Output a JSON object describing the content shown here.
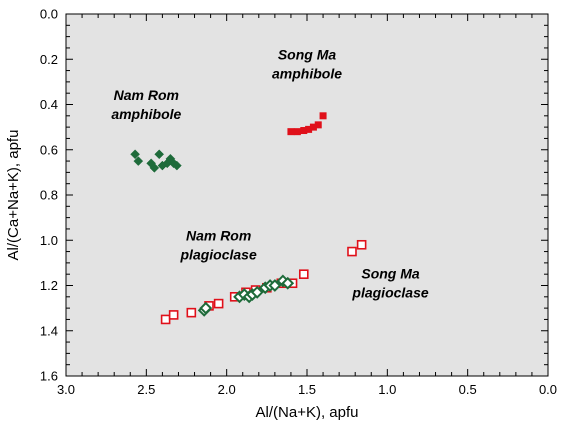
{
  "chart_data": {
    "type": "scatter",
    "title": "",
    "xlabel": "Al/(Na+K), apfu",
    "ylabel": "Al/(Ca+Na+K), apfu",
    "xlim": [
      3.0,
      0.0
    ],
    "ylim": [
      0.0,
      1.6
    ],
    "x_reversed": true,
    "y_reversed": true,
    "x_ticks": [
      "3.0",
      "2.5",
      "2.0",
      "1.5",
      "1.0",
      "0.5",
      "0.0"
    ],
    "y_ticks": [
      "0.0",
      "0.2",
      "0.4",
      "0.6",
      "0.8",
      "1.0",
      "1.2",
      "1.4",
      "1.6"
    ],
    "grid": false,
    "plot_background": "#e3e3e3",
    "series": [
      {
        "marker": "filled-diamond",
        "color": "#1e6b3a",
        "points": [
          {
            "x": 2.57,
            "y": 0.62
          },
          {
            "x": 2.55,
            "y": 0.65
          },
          {
            "x": 2.47,
            "y": 0.66
          },
          {
            "x": 2.45,
            "y": 0.68
          },
          {
            "x": 2.42,
            "y": 0.62
          },
          {
            "x": 2.4,
            "y": 0.67
          },
          {
            "x": 2.37,
            "y": 0.66
          },
          {
            "x": 2.35,
            "y": 0.64
          },
          {
            "x": 2.33,
            "y": 0.66
          },
          {
            "x": 2.31,
            "y": 0.67
          }
        ]
      },
      {
        "marker": "filled-square",
        "color": "#e0101a",
        "points": [
          {
            "x": 1.6,
            "y": 0.52
          },
          {
            "x": 1.56,
            "y": 0.52
          },
          {
            "x": 1.52,
            "y": 0.515
          },
          {
            "x": 1.49,
            "y": 0.51
          },
          {
            "x": 1.46,
            "y": 0.5
          },
          {
            "x": 1.43,
            "y": 0.49
          },
          {
            "x": 1.4,
            "y": 0.45
          }
        ]
      },
      {
        "marker": "open-square",
        "color": "#e0101a",
        "points": [
          {
            "x": 2.38,
            "y": 1.35
          },
          {
            "x": 2.33,
            "y": 1.33
          },
          {
            "x": 2.22,
            "y": 1.32
          },
          {
            "x": 2.11,
            "y": 1.29
          },
          {
            "x": 2.05,
            "y": 1.28
          },
          {
            "x": 1.95,
            "y": 1.25
          },
          {
            "x": 1.88,
            "y": 1.23
          },
          {
            "x": 1.82,
            "y": 1.22
          },
          {
            "x": 1.75,
            "y": 1.21
          },
          {
            "x": 1.66,
            "y": 1.19
          },
          {
            "x": 1.59,
            "y": 1.19
          },
          {
            "x": 1.52,
            "y": 1.15
          },
          {
            "x": 1.22,
            "y": 1.05
          },
          {
            "x": 1.16,
            "y": 1.02
          }
        ]
      },
      {
        "marker": "open-diamond",
        "color": "#1e6b3a",
        "points": [
          {
            "x": 2.14,
            "y": 1.31
          },
          {
            "x": 2.13,
            "y": 1.3
          },
          {
            "x": 1.92,
            "y": 1.25
          },
          {
            "x": 1.89,
            "y": 1.24
          },
          {
            "x": 1.86,
            "y": 1.25
          },
          {
            "x": 1.84,
            "y": 1.24
          },
          {
            "x": 1.81,
            "y": 1.23
          },
          {
            "x": 1.76,
            "y": 1.21
          },
          {
            "x": 1.73,
            "y": 1.2
          },
          {
            "x": 1.7,
            "y": 1.2
          },
          {
            "x": 1.65,
            "y": 1.18
          },
          {
            "x": 1.62,
            "y": 1.19
          }
        ]
      }
    ],
    "annotations": [
      {
        "lines": [
          "Nam Rom",
          "amphibole"
        ],
        "x": 2.5,
        "y": 0.38
      },
      {
        "lines": [
          "Song Ma",
          "amphibole"
        ],
        "x": 1.5,
        "y": 0.2
      },
      {
        "lines": [
          "Nam Rom",
          "plagioclase"
        ],
        "x": 2.05,
        "y": 1.0
      },
      {
        "lines": [
          "Song Ma",
          "plagioclase"
        ],
        "x": 0.98,
        "y": 1.17
      }
    ]
  }
}
